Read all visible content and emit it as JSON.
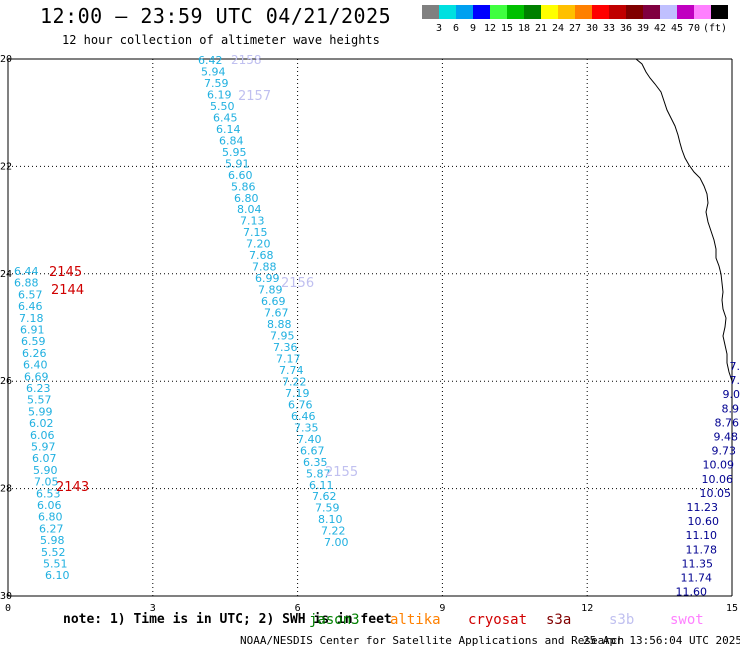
{
  "header": {
    "title": "12:00 — 23:59 UTC 04/21/2025",
    "subtitle": "12 hour collection of altimeter wave heights"
  },
  "legend": {
    "unit": "(ft)",
    "colors": [
      "#808080",
      "#00e0e0",
      "#00a0f0",
      "#0000ff",
      "#40ff40",
      "#00c000",
      "#008000",
      "#ffff00",
      "#ffc000",
      "#ff8000",
      "#ff0000",
      "#c00000",
      "#800000",
      "#800040",
      "#c0c0ff",
      "#c000c0",
      "#ff80ff",
      "#000000"
    ],
    "ticks": [
      "3",
      "6",
      "9",
      "12",
      "15",
      "18",
      "21",
      "24",
      "27",
      "30",
      "33",
      "36",
      "39",
      "42",
      "45",
      "70"
    ]
  },
  "axes": {
    "x_ticks": [
      "0",
      "3",
      "6",
      "9",
      "12",
      "15"
    ],
    "y_ticks": [
      "20",
      "22",
      "24",
      "26",
      "28",
      "30"
    ]
  },
  "passes": [
    {
      "label": "2158",
      "color": "#c0c0f0"
    },
    {
      "label": "2157",
      "color": "#c0c0f0"
    },
    {
      "label": "2156",
      "color": "#c0c0f0"
    },
    {
      "label": "2155",
      "color": "#c0c0f0"
    },
    {
      "label": "2145",
      "color": "#d00000"
    },
    {
      "label": "2144",
      "color": "#d00000"
    },
    {
      "label": "2143",
      "color": "#d00000"
    }
  ],
  "tracks": [
    {
      "name": "track-center",
      "color": "#20b0e0",
      "values": [
        "6.42",
        "5.94",
        "7.59",
        "6.19",
        "5.50",
        "6.45",
        "6.14",
        "6.84",
        "5.95",
        "5.91",
        "6.60",
        "5.86",
        "6.80",
        "8.04",
        "7.13",
        "7.15",
        "7.20",
        "7.68",
        "7.88",
        "6.99",
        "7.89",
        "6.69",
        "7.67",
        "8.88",
        "7.95",
        "7.36",
        "7.17",
        "7.74",
        "7.22",
        "7.19",
        "6.76",
        "6.46",
        "7.35",
        "7.40",
        "6.67",
        "6.35",
        "5.87",
        "6.11",
        "7.62",
        "7.59",
        "8.10",
        "7.22",
        "7.00"
      ]
    },
    {
      "name": "track-west",
      "color": "#20b0e0",
      "values": [
        "6.44",
        "6.88",
        "6.57",
        "6.46",
        "7.18",
        "6.91",
        "6.59",
        "6.26",
        "6.40",
        "6.69",
        "6.23",
        "5.57",
        "5.99",
        "6.02",
        "6.06",
        "5.97",
        "6.07",
        "5.90",
        "7.05",
        "6.53",
        "6.06",
        "6.80",
        "6.27",
        "5.98",
        "5.52",
        "5.51",
        "6.10"
      ]
    },
    {
      "name": "track-east",
      "color": "#000090",
      "values": [
        "7.",
        "7.",
        "9.0",
        "8.9",
        "8.76",
        "9.48",
        "9.73",
        "10.09",
        "10.06",
        "10.05",
        "11.23",
        "10.60",
        "11.10",
        "11.78",
        "11.35",
        "11.74",
        "11.60"
      ]
    }
  ],
  "footer": {
    "note": "note:  1) Time is in UTC; 2) SWH is in feet",
    "satellites": [
      {
        "name": "jason3",
        "color": "#008000"
      },
      {
        "name": "altika",
        "color": "#ff8000"
      },
      {
        "name": "cryosat",
        "color": "#d00000"
      },
      {
        "name": "s3a",
        "color": "#800000"
      },
      {
        "name": "s3b",
        "color": "#c0c0f0"
      },
      {
        "name": "swot",
        "color": "#ff80ff"
      }
    ],
    "credit": "NOAA/NESDIS Center for Satellite Applications and Research",
    "timestamp": "25 Apr 13:56:04 UTC 2025"
  }
}
